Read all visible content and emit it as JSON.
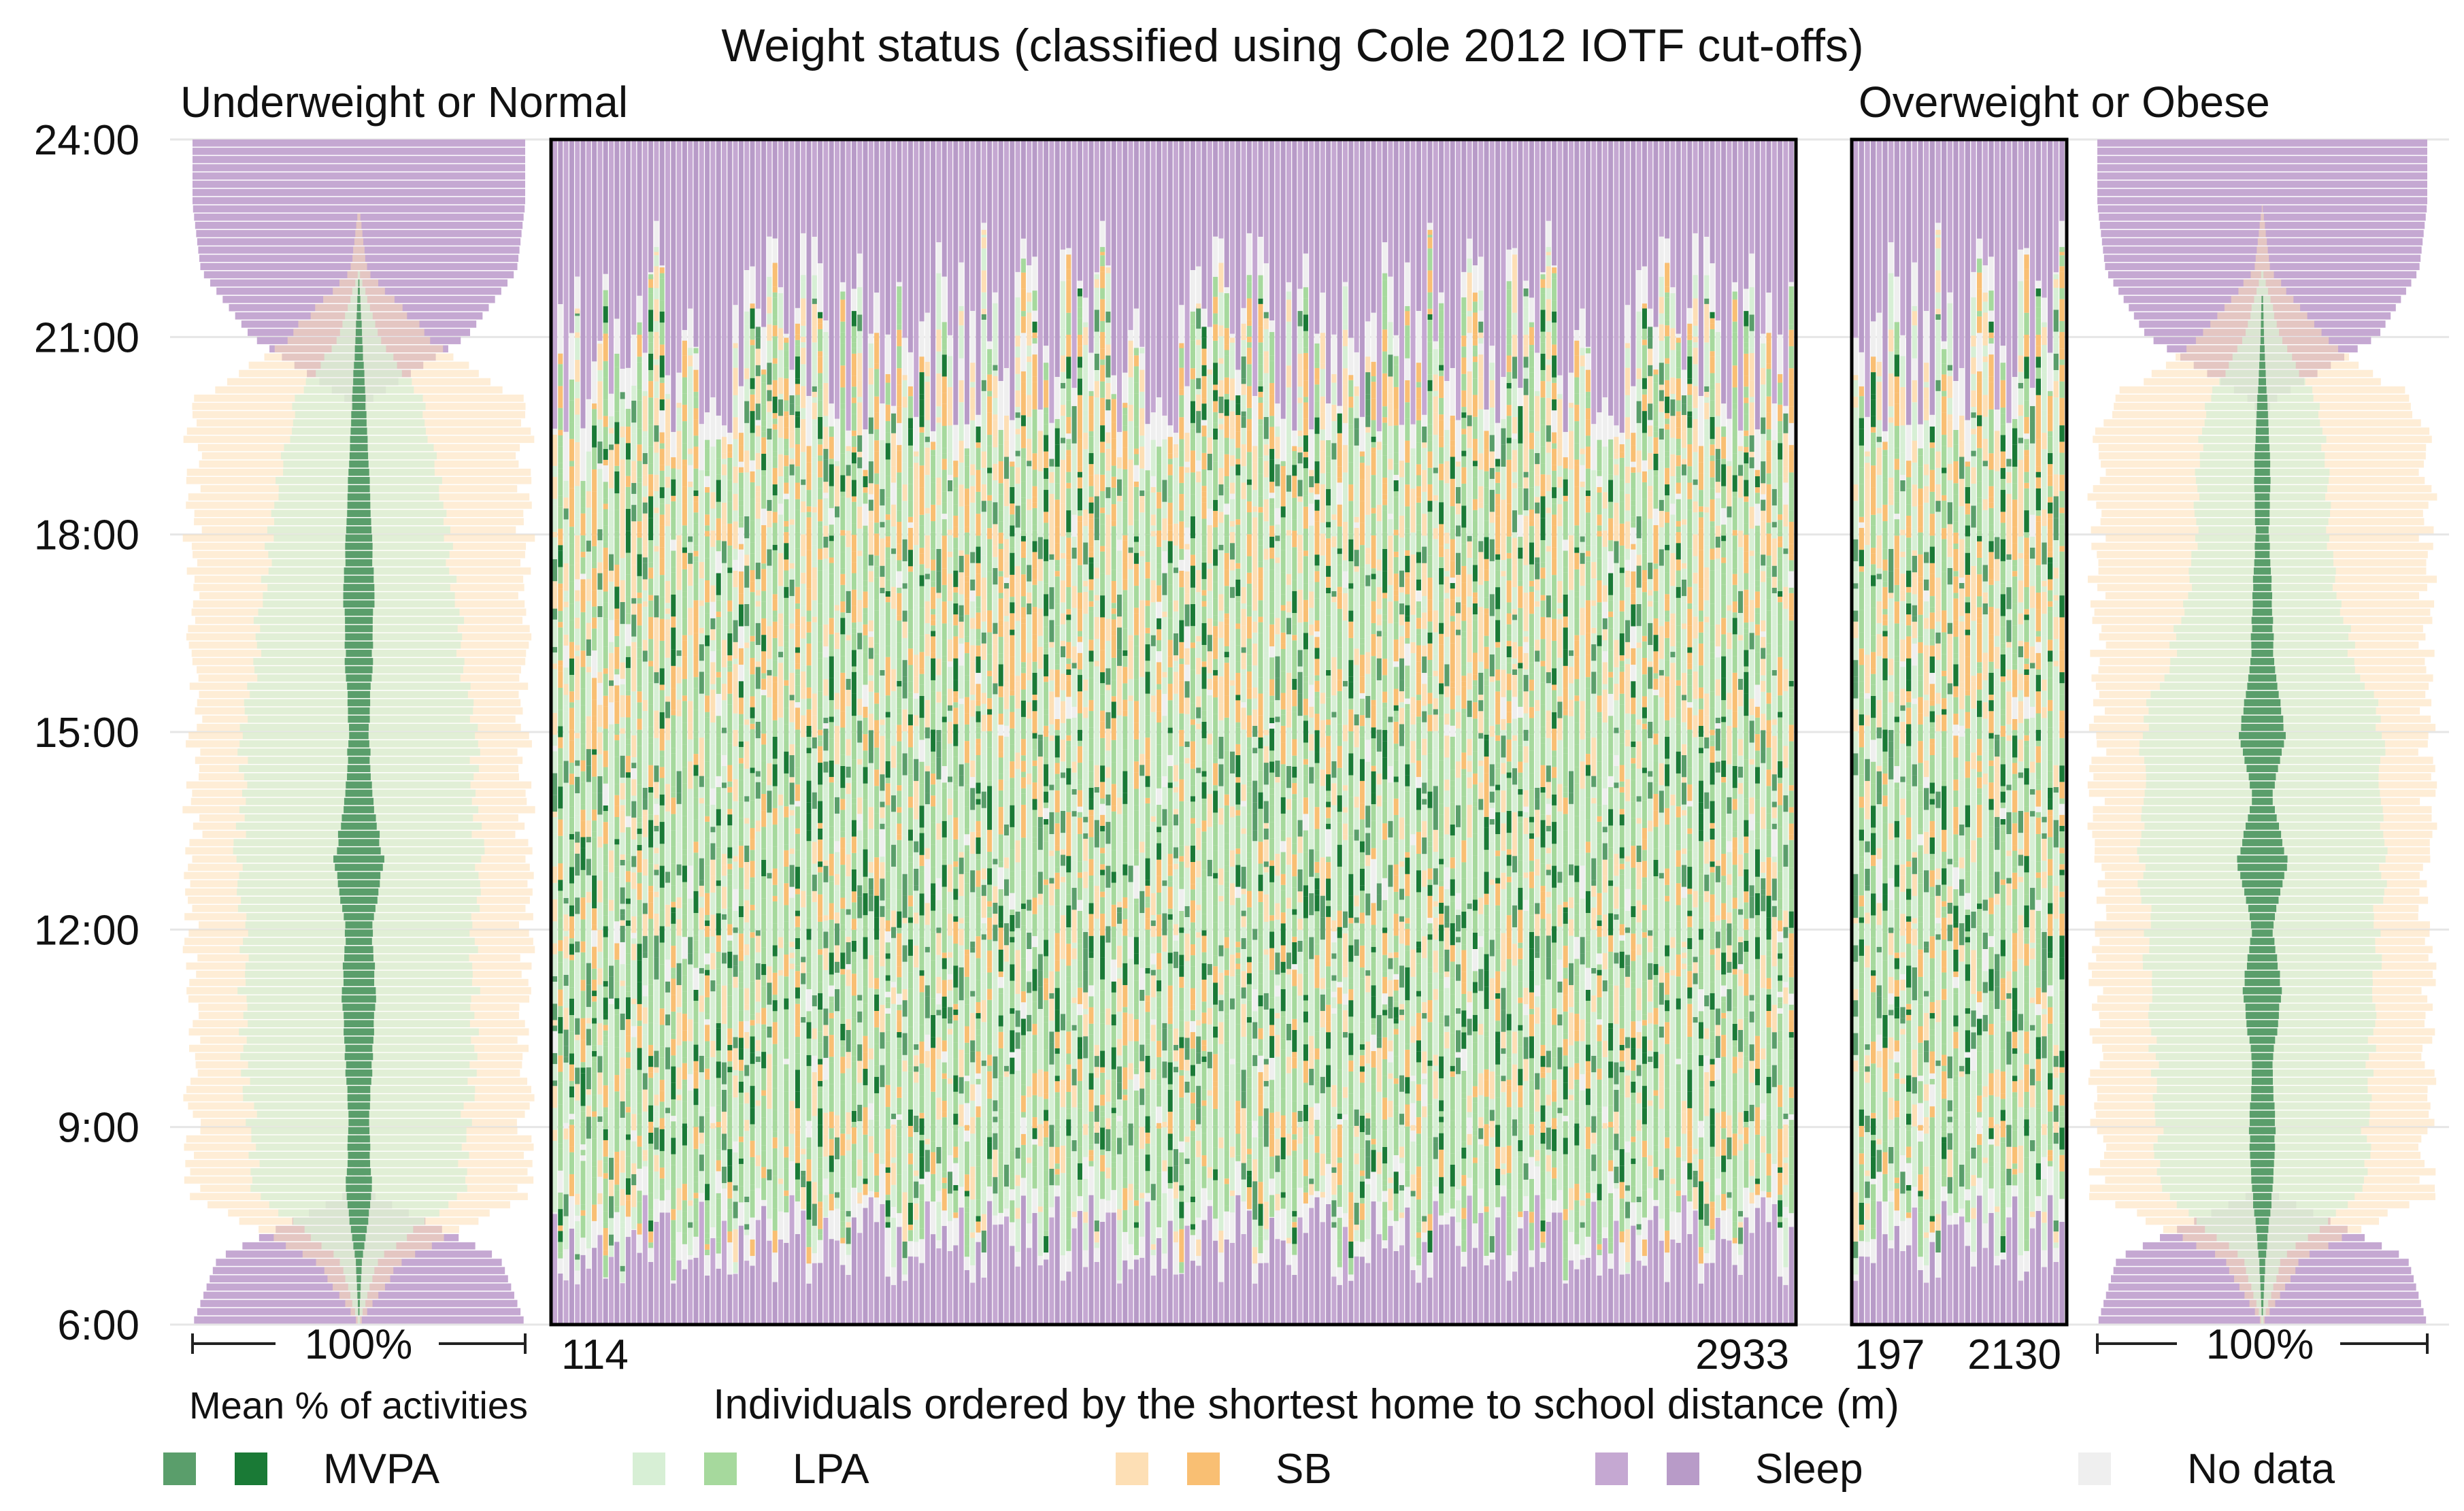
{
  "chart_data": {
    "type": "heatmap",
    "title": "Weight status (classified using Cole 2012 IOTF cut-offs)",
    "groups": [
      {
        "name": "Underweight or Normal",
        "individuals_first_distance": "114",
        "individuals_last_distance": "2933"
      },
      {
        "name": "Overweight or Obese",
        "individuals_first_distance": "197",
        "individuals_last_distance": "2130"
      }
    ],
    "y_axis": {
      "ticks": [
        "24:00",
        "21:00",
        "18:00",
        "15:00",
        "12:00",
        "9:00",
        "6:00"
      ],
      "range_hours": [
        6,
        24
      ]
    },
    "x_label": "Individuals ordered by the shortest home to school distance (m)",
    "mean_panel_scale_label": "100%",
    "mean_panel_caption": "Mean % of activities",
    "legend": [
      {
        "label": "MVPA",
        "light": "#5a9e6b",
        "dark": "#1a7a36"
      },
      {
        "label": "LPA",
        "light": "#d7efd5",
        "dark": "#a6d99d"
      },
      {
        "label": "SB",
        "light": "#fddfb5",
        "dark": "#f9bf73"
      },
      {
        "label": "Sleep",
        "light": "#c5a8d2",
        "dark": "#b89bc8"
      },
      {
        "label": "No data",
        "light": "#efefef",
        "dark": null
      }
    ],
    "mean_profile_UN": {
      "hours": [
        6,
        7,
        8,
        9,
        10,
        11,
        12,
        13,
        14,
        15,
        16,
        17,
        18,
        19,
        20,
        21,
        22,
        23,
        24
      ],
      "sleep": [
        100,
        85,
        5,
        1,
        0,
        0,
        0,
        0,
        0,
        0,
        0,
        0,
        0,
        0,
        5,
        65,
        95,
        100,
        100
      ],
      "sb": [
        0,
        15,
        45,
        42,
        40,
        38,
        40,
        45,
        42,
        40,
        45,
        48,
        55,
        60,
        60,
        30,
        5,
        0,
        0
      ],
      "lpa": [
        0,
        10,
        55,
        58,
        60,
        60,
        60,
        58,
        62,
        65,
        55,
        50,
        45,
        40,
        35,
        10,
        0,
        0,
        0
      ],
      "mvpa": [
        0,
        2,
        8,
        6,
        8,
        10,
        8,
        15,
        8,
        6,
        8,
        9,
        8,
        6,
        4,
        2,
        0,
        0,
        0
      ]
    },
    "mean_profile_OO": {
      "hours": [
        6,
        7,
        8,
        9,
        10,
        11,
        12,
        13,
        14,
        15,
        16,
        17,
        18,
        19,
        20,
        21,
        22,
        23,
        24
      ],
      "sleep": [
        100,
        88,
        5,
        1,
        0,
        0,
        0,
        0,
        0,
        0,
        0,
        0,
        0,
        0,
        5,
        70,
        95,
        100,
        100
      ],
      "sb": [
        0,
        12,
        45,
        45,
        40,
        40,
        38,
        40,
        42,
        45,
        55,
        62,
        65,
        62,
        60,
        25,
        5,
        0,
        0
      ],
      "lpa": [
        0,
        10,
        55,
        55,
        60,
        58,
        62,
        58,
        62,
        60,
        50,
        40,
        35,
        35,
        30,
        10,
        0,
        0,
        0
      ],
      "mvpa": [
        0,
        2,
        6,
        8,
        6,
        12,
        6,
        15,
        6,
        14,
        7,
        6,
        4,
        5,
        3,
        1,
        0,
        0,
        0
      ]
    }
  }
}
